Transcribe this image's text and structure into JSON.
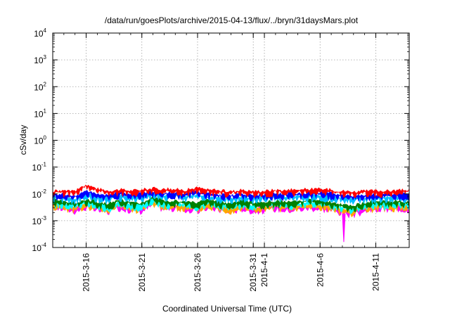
{
  "chart_data": {
    "type": "line",
    "title": "/data/run/goesPlots/archive/2015-04-13/flux/../bryn/31daysMars.plot",
    "xlabel": "Coordinated Universal Time (UTC)",
    "ylabel": "cSv/day",
    "y_scale": "log",
    "ylim": [
      0.0001,
      10000
    ],
    "xlim": [
      "2015-03-13",
      "2015-04-14"
    ],
    "grid": true,
    "legend": "none",
    "y_ticks": [
      {
        "base": "10",
        "exp": "-4",
        "value": 0.0001
      },
      {
        "base": "10",
        "exp": "-3",
        "value": 0.001
      },
      {
        "base": "10",
        "exp": "-2",
        "value": 0.01
      },
      {
        "base": "10",
        "exp": "-1",
        "value": 0.1
      },
      {
        "base": "10",
        "exp": "0",
        "value": 1
      },
      {
        "base": "10",
        "exp": "1",
        "value": 10
      },
      {
        "base": "10",
        "exp": "2",
        "value": 100
      },
      {
        "base": "10",
        "exp": "3",
        "value": 1000
      },
      {
        "base": "10",
        "exp": "4",
        "value": 10000
      }
    ],
    "x_ticks": [
      {
        "label": "2015-3-16",
        "date": "2015-03-16"
      },
      {
        "label": "2015-3-21",
        "date": "2015-03-21"
      },
      {
        "label": "2015-3-26",
        "date": "2015-03-26"
      },
      {
        "label": "2015-3-31",
        "date": "2015-03-31"
      },
      {
        "label": "2015-4-1",
        "date": "2015-04-01"
      },
      {
        "label": "2015-4-6",
        "date": "2015-04-06"
      },
      {
        "label": "2015-4-11",
        "date": "2015-04-11"
      }
    ],
    "x": [
      "2015-03-13",
      "2015-03-14",
      "2015-03-15",
      "2015-03-16",
      "2015-03-17",
      "2015-03-18",
      "2015-03-19",
      "2015-03-20",
      "2015-03-21",
      "2015-03-22",
      "2015-03-23",
      "2015-03-24",
      "2015-03-25",
      "2015-03-26",
      "2015-03-27",
      "2015-03-28",
      "2015-03-29",
      "2015-03-30",
      "2015-03-31",
      "2015-04-01",
      "2015-04-02",
      "2015-04-03",
      "2015-04-04",
      "2015-04-05",
      "2015-04-06",
      "2015-04-07",
      "2015-04-08",
      "2015-04-09",
      "2015-04-10",
      "2015-04-11",
      "2015-04-12",
      "2015-04-13",
      "2015-04-14"
    ],
    "series": [
      {
        "color": "#ff00ff",
        "values": [
          0.0035,
          0.0032,
          0.0026,
          0.0036,
          0.0028,
          0.0024,
          0.0034,
          0.0028,
          0.0026,
          0.0045,
          0.0031,
          0.0032,
          0.0028,
          0.0027,
          0.0035,
          0.0029,
          0.0024,
          0.0032,
          0.0026,
          0.0027,
          0.0032,
          0.0028,
          0.003,
          0.0034,
          0.0032,
          0.0028,
          0.0022,
          0.0018,
          0.0026,
          0.003,
          0.0029,
          0.0032,
          0.0029
        ]
      },
      {
        "color": "#ffa500",
        "values": [
          0.0037,
          0.0034,
          0.0028,
          0.0039,
          0.003,
          0.0026,
          0.0037,
          0.003,
          0.0028,
          0.0048,
          0.0034,
          0.0034,
          0.003,
          0.0029,
          0.0037,
          0.0031,
          0.0026,
          0.0035,
          0.0028,
          0.0029,
          0.0034,
          0.003,
          0.0032,
          0.0036,
          0.0035,
          0.003,
          0.0024,
          0.0021,
          0.0028,
          0.0032,
          0.0031,
          0.0034,
          0.0031
        ]
      },
      {
        "color": "#00ffff",
        "values": [
          0.0044,
          0.0041,
          0.0034,
          0.0047,
          0.0036,
          0.0031,
          0.0044,
          0.0036,
          0.0033,
          0.0058,
          0.004,
          0.0041,
          0.0036,
          0.0035,
          0.0044,
          0.0037,
          0.0031,
          0.0042,
          0.0034,
          0.0035,
          0.0041,
          0.0036,
          0.0038,
          0.0043,
          0.0042,
          0.0036,
          0.0029,
          0.0026,
          0.0034,
          0.0039,
          0.0037,
          0.0041,
          0.0037
        ]
      },
      {
        "color": "#008000",
        "values": [
          0.0052,
          0.0048,
          0.004,
          0.0055,
          0.0043,
          0.0037,
          0.0052,
          0.0043,
          0.0039,
          0.0068,
          0.0047,
          0.0048,
          0.0042,
          0.0041,
          0.0052,
          0.0044,
          0.0037,
          0.0049,
          0.004,
          0.0041,
          0.0048,
          0.0042,
          0.0045,
          0.0051,
          0.0049,
          0.0042,
          0.0034,
          0.0031,
          0.004,
          0.0046,
          0.0044,
          0.0048,
          0.0044
        ]
      },
      {
        "color": "#00bfff",
        "values": [
          0.0072,
          0.0068,
          0.006,
          0.0088,
          0.007,
          0.0064,
          0.008,
          0.007,
          0.0072,
          0.0095,
          0.0078,
          0.008,
          0.0074,
          0.0088,
          0.0072,
          0.0068,
          0.0062,
          0.007,
          0.0064,
          0.0066,
          0.0072,
          0.007,
          0.0074,
          0.0078,
          0.008,
          0.0072,
          0.0066,
          0.006,
          0.0064,
          0.0068,
          0.0066,
          0.007,
          0.007
        ]
      },
      {
        "color": "#0000ff",
        "values": [
          0.0085,
          0.0082,
          0.0075,
          0.011,
          0.0088,
          0.008,
          0.0098,
          0.0088,
          0.009,
          0.0112,
          0.0096,
          0.0098,
          0.0092,
          0.0108,
          0.009,
          0.0085,
          0.0078,
          0.0088,
          0.008,
          0.0082,
          0.009,
          0.0088,
          0.0092,
          0.0096,
          0.0098,
          0.009,
          0.0082,
          0.0075,
          0.008,
          0.0085,
          0.0082,
          0.0088,
          0.0088
        ]
      },
      {
        "color": "#ff0000",
        "values": [
          0.011,
          0.0115,
          0.0105,
          0.02,
          0.0135,
          0.0115,
          0.0125,
          0.0115,
          0.0125,
          0.014,
          0.013,
          0.0128,
          0.0122,
          0.015,
          0.012,
          0.0115,
          0.0108,
          0.0118,
          0.011,
          0.0112,
          0.0122,
          0.0118,
          0.0125,
          0.013,
          0.0132,
          0.0122,
          0.0112,
          0.0105,
          0.011,
          0.0115,
          0.0112,
          0.0118,
          0.012
        ]
      }
    ]
  }
}
